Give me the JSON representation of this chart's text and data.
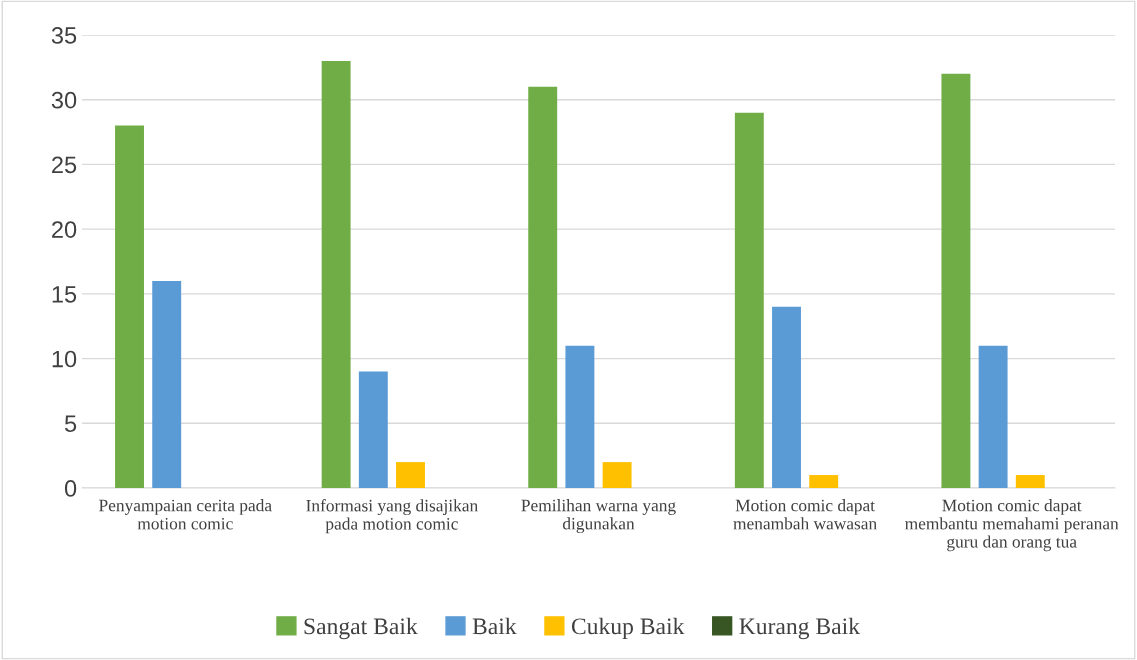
{
  "chart_data": {
    "type": "bar",
    "categories": [
      "Penyampaian cerita pada motion comic",
      "Informasi yang disajikan pada motion comic",
      "Pemilihan warna yang digunakan",
      "Motion comic dapat menambah wawasan",
      "Motion comic dapat membantu memahami peranan guru dan orang tua"
    ],
    "series": [
      {
        "name": "Sangat Baik",
        "color": "#70ad47",
        "values": [
          28,
          33,
          31,
          29,
          32
        ]
      },
      {
        "name": "Baik",
        "color": "#5b9bd5",
        "values": [
          16,
          9,
          11,
          14,
          11
        ]
      },
      {
        "name": "Cukup Baik",
        "color": "#ffc000",
        "values": [
          0,
          2,
          2,
          1,
          1
        ]
      },
      {
        "name": "Kurang Baik",
        "color": "#375623",
        "values": [
          0,
          0,
          0,
          0,
          0
        ]
      }
    ],
    "ylim": [
      0,
      35
    ],
    "yticks": [
      0,
      5,
      10,
      15,
      20,
      25,
      30,
      35
    ],
    "grid": "y",
    "legend": "bottom"
  }
}
